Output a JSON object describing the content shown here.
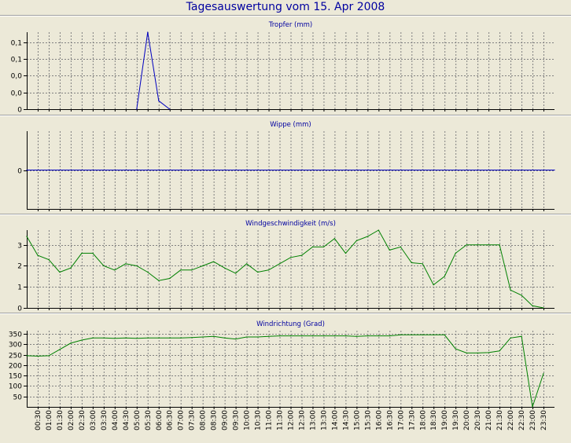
{
  "title": "Tagesauswertung vom 15. Apr 2008",
  "time_labels": [
    "00:30",
    "01:00",
    "01:30",
    "02:00",
    "02:30",
    "03:00",
    "03:30",
    "04:00",
    "04:30",
    "05:00",
    "05:30",
    "06:00",
    "06:30",
    "07:00",
    "07:30",
    "08:00",
    "08:30",
    "09:00",
    "09:30",
    "10:00",
    "10:30",
    "11:00",
    "11:30",
    "12:00",
    "12:30",
    "13:00",
    "13:30",
    "14:00",
    "14:30",
    "15:00",
    "15:30",
    "16:00",
    "16:30",
    "17:00",
    "17:30",
    "18:00",
    "18:30",
    "19:00",
    "19:30",
    "20:00",
    "20:30",
    "21:00",
    "21:30",
    "22:00",
    "22:30",
    "23:00",
    "23:30"
  ],
  "colors": {
    "background": "#ece9d8",
    "title": "#0000a0",
    "blue_series": "#0000c0",
    "green_series": "#008000",
    "grid": "#808080"
  },
  "chart_data": [
    {
      "type": "line",
      "title": "Tropfer (mm)",
      "ytick_labels": [
        "0,1",
        "0,1",
        "0,0",
        "0,0",
        "0"
      ],
      "ylim": [
        0,
        0.23
      ],
      "series": [
        {
          "color": "#0000c0",
          "points": [
            [
              10,
              0
            ],
            [
              11,
              0.23
            ],
            [
              12,
              0.025
            ],
            [
              13,
              0
            ]
          ]
        }
      ]
    },
    {
      "type": "line",
      "title": "Wippe (mm)",
      "ytick_labels": [
        "0"
      ],
      "ylim": [
        -1,
        1
      ],
      "series": [
        {
          "color": "#0000c0",
          "points": [
            [
              0,
              0
            ],
            [
              48,
              0
            ]
          ]
        }
      ]
    },
    {
      "type": "line",
      "title": "Windgeschwindigkeit (m/s)",
      "ytick_labels": [
        "3",
        "2",
        "1",
        "0"
      ],
      "ylim": [
        0,
        3.7
      ],
      "series": [
        {
          "color": "#008000",
          "points": [
            [
              0,
              3.4
            ],
            [
              1,
              2.5
            ],
            [
              2,
              2.3
            ],
            [
              3,
              1.7
            ],
            [
              4,
              1.9
            ],
            [
              5,
              2.6
            ],
            [
              6,
              2.6
            ],
            [
              7,
              2.0
            ],
            [
              8,
              1.8
            ],
            [
              9,
              2.1
            ],
            [
              10,
              2.0
            ],
            [
              11,
              1.7
            ],
            [
              12,
              1.3
            ],
            [
              13,
              1.4
            ],
            [
              14,
              1.8
            ],
            [
              15,
              1.8
            ],
            [
              16,
              2.0
            ],
            [
              17,
              2.2
            ],
            [
              18,
              1.9
            ],
            [
              19,
              1.65
            ],
            [
              20,
              2.1
            ],
            [
              21,
              1.7
            ],
            [
              22,
              1.8
            ],
            [
              23,
              2.1
            ],
            [
              24,
              2.4
            ],
            [
              25,
              2.5
            ],
            [
              26,
              2.9
            ],
            [
              27,
              2.9
            ],
            [
              28,
              3.3
            ],
            [
              29,
              2.6
            ],
            [
              30,
              3.2
            ],
            [
              31,
              3.4
            ],
            [
              32,
              3.7
            ],
            [
              33,
              2.75
            ],
            [
              34,
              2.9
            ],
            [
              35,
              2.15
            ],
            [
              36,
              2.1
            ],
            [
              37,
              1.1
            ],
            [
              38,
              1.5
            ],
            [
              39,
              2.6
            ],
            [
              40,
              3.0
            ],
            [
              41,
              3.0
            ],
            [
              42,
              3.0
            ],
            [
              43,
              3.0
            ],
            [
              44,
              0.85
            ],
            [
              45,
              0.6
            ],
            [
              46,
              0.1
            ],
            [
              47,
              0.0
            ]
          ]
        }
      ]
    },
    {
      "type": "line",
      "title": "Windrichtung (Grad)",
      "ytick_labels": [
        "350",
        "300",
        "250",
        "200",
        "150",
        "100",
        "50"
      ],
      "ylim": [
        0,
        365
      ],
      "series": [
        {
          "color": "#008000",
          "points": [
            [
              0,
              245
            ],
            [
              1,
              243
            ],
            [
              2,
              245
            ],
            [
              3,
              275
            ],
            [
              4,
              305
            ],
            [
              5,
              320
            ],
            [
              6,
              330
            ],
            [
              7,
              330
            ],
            [
              8,
              328
            ],
            [
              9,
              330
            ],
            [
              10,
              328
            ],
            [
              11,
              330
            ],
            [
              12,
              330
            ],
            [
              13,
              330
            ],
            [
              14,
              330
            ],
            [
              15,
              332
            ],
            [
              16,
              335
            ],
            [
              17,
              338
            ],
            [
              18,
              330
            ],
            [
              19,
              325
            ],
            [
              20,
              335
            ],
            [
              21,
              335
            ],
            [
              22,
              338
            ],
            [
              23,
              340
            ],
            [
              24,
              340
            ],
            [
              25,
              340
            ],
            [
              26,
              340
            ],
            [
              27,
              340
            ],
            [
              28,
              340
            ],
            [
              29,
              340
            ],
            [
              30,
              338
            ],
            [
              31,
              340
            ],
            [
              32,
              340
            ],
            [
              33,
              340
            ],
            [
              34,
              345
            ],
            [
              35,
              345
            ],
            [
              36,
              345
            ],
            [
              37,
              345
            ],
            [
              38,
              345
            ],
            [
              39,
              278
            ],
            [
              40,
              258
            ],
            [
              41,
              258
            ],
            [
              42,
              260
            ],
            [
              43,
              268
            ],
            [
              44,
              330
            ],
            [
              45,
              338
            ],
            [
              46,
              0
            ],
            [
              47,
              160
            ]
          ]
        }
      ]
    }
  ]
}
